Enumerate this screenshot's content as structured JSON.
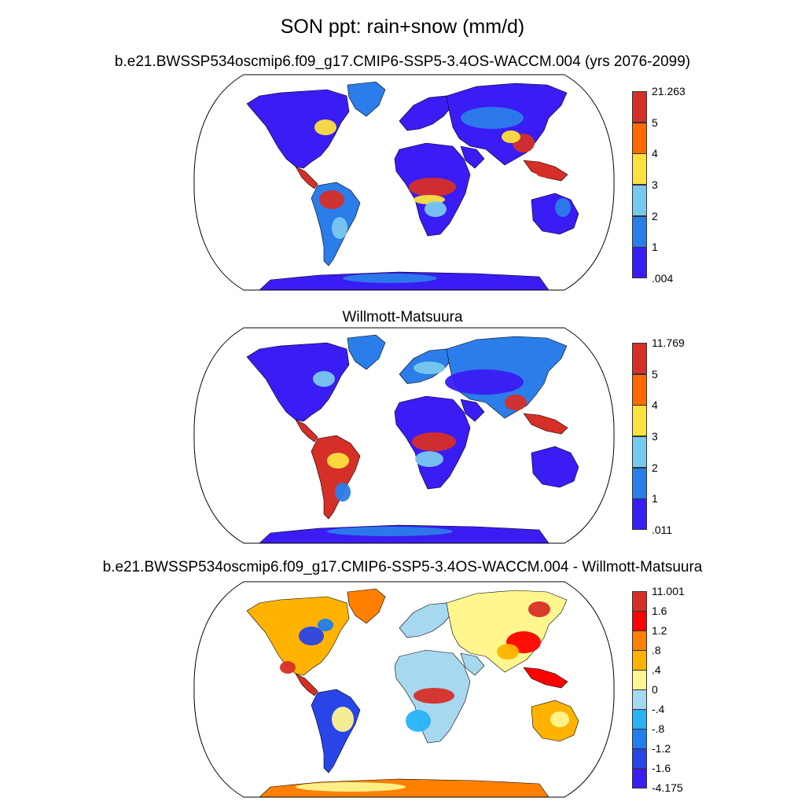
{
  "figure": {
    "main_title": "SON ppt: rain+snow (mm/d)",
    "panels": [
      {
        "id": "model",
        "title": "b.e21.BWSSP534oscmip6.f09_g17.CMIP6-SSP5-3.4OS-WACCM.004 (yrs 2076-2099)",
        "colorbar": {
          "labels": [
            "21.263",
            "5",
            "4",
            "3",
            "2",
            "1",
            ".004"
          ],
          "colors": [
            "#d62f27",
            "#ff6a00",
            "#fde23c",
            "#79c8ef",
            "#2b7de9",
            "#3a1cf4"
          ]
        }
      },
      {
        "id": "obs",
        "title": "Willmott-Matsuura",
        "colorbar": {
          "labels": [
            "11.769",
            "5",
            "4",
            "3",
            "2",
            "1",
            ".011"
          ],
          "colors": [
            "#d62f27",
            "#ff6a00",
            "#fde23c",
            "#79c8ef",
            "#2b7de9",
            "#3a1cf4"
          ]
        }
      },
      {
        "id": "diff",
        "title": "b.e21.BWSSP534oscmip6.f09_g17.CMIP6-SSP5-3.4OS-WACCM.004 - Willmott-Matsuura",
        "colorbar": {
          "labels": [
            "11.001",
            "1.6",
            "1.2",
            ".8",
            ".4",
            "0",
            "-.4",
            "-.8",
            "-1.2",
            "-1.6",
            "-4.175"
          ],
          "colors": [
            "#d62f27",
            "#ff0000",
            "#ff7f00",
            "#ffb300",
            "#fff68f",
            "#a6d8f0",
            "#27b4f5",
            "#1e7ff0",
            "#2945e8",
            "#3a1cf4"
          ]
        }
      }
    ]
  }
}
